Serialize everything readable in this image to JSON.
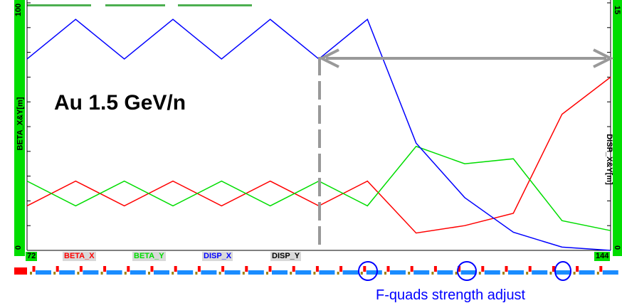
{
  "chart_data": {
    "type": "line",
    "title": "",
    "annotation": "Au 1.5 GeV/n",
    "callout": "F-quads strength adjust",
    "ylabel_left": "BETA_X&Y[m]",
    "ylabel_right": "DISP_X&Y[m]",
    "y_left_range": [
      0,
      100
    ],
    "y_right_range": [
      0,
      15
    ],
    "y_left_ticks": [
      "0",
      "100"
    ],
    "y_right_ticks": [
      "0",
      "15"
    ],
    "x_ticks": [
      "72",
      "144"
    ],
    "grid": false,
    "legend": [
      "BETA_X",
      "BETA_Y",
      "DISP_X",
      "DISP_Y"
    ],
    "colors": {
      "beta_x": "#ff0000",
      "beta_y": "#00dd00",
      "disp_x": "#0000ff",
      "disp_y": "#000000",
      "arrow": "#a0a0a0",
      "axis_bg": "#00dd00",
      "focus_mark": "#0000ff"
    },
    "series": [
      {
        "name": "BETA_X",
        "axis": "left",
        "x": [
          72,
          78,
          84,
          90,
          96,
          102,
          108,
          114,
          120,
          126,
          132,
          138,
          144
        ],
        "values": [
          18,
          28,
          18,
          28,
          18,
          28,
          18,
          28,
          7,
          10,
          15,
          55,
          70
        ]
      },
      {
        "name": "BETA_Y",
        "axis": "left",
        "x": [
          72,
          78,
          84,
          90,
          96,
          102,
          108,
          114,
          120,
          126,
          132,
          138,
          144
        ],
        "values": [
          28,
          18,
          28,
          18,
          28,
          18,
          28,
          18,
          42,
          35,
          37,
          12,
          8
        ]
      },
      {
        "name": "DISP_X",
        "axis": "right",
        "x": [
          72,
          78,
          84,
          90,
          96,
          102,
          108,
          114,
          120,
          126,
          132,
          138,
          144
        ],
        "values": [
          11.6,
          14.0,
          11.6,
          14.0,
          11.6,
          14.0,
          11.6,
          14.0,
          6.5,
          3.2,
          1.1,
          0.2,
          0.0
        ]
      }
    ]
  },
  "lattice": {
    "elements": [
      "d",
      "f",
      "d",
      "f",
      "d",
      "f",
      "d",
      "f",
      "d",
      "f",
      "d",
      "f",
      "d",
      "f",
      "d",
      "f",
      "d",
      "f",
      "d",
      "f",
      "d",
      "f",
      "d",
      "f",
      "d",
      "f",
      "d",
      "f",
      "d",
      "f",
      "d",
      "f",
      "d",
      "f",
      "d",
      "f",
      "d",
      "f",
      "d",
      "f",
      "d",
      "f",
      "d",
      "f",
      "d",
      "f",
      "d",
      "f",
      "d",
      "f"
    ],
    "adjusted_f_quads": 3
  }
}
